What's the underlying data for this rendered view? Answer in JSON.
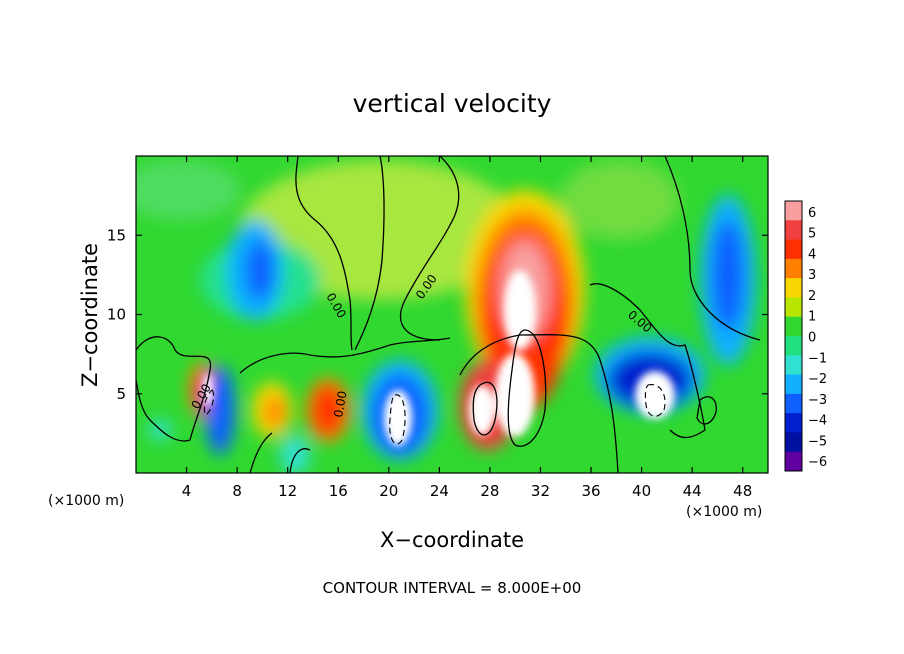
{
  "chart_data": {
    "type": "heatmap",
    "title": "vertical velocity",
    "xlabel": "X−coordinate",
    "ylabel": "Z−coordinate",
    "x_unit": "(×1000 m)",
    "x_unit_right": "(×1000 m)",
    "xlim": [
      0,
      50
    ],
    "ylim": [
      0,
      20
    ],
    "x_ticks": [
      4,
      8,
      12,
      16,
      20,
      24,
      28,
      32,
      36,
      40,
      44,
      48
    ],
    "y_ticks": [
      5,
      10,
      15
    ],
    "colorbar": {
      "ticks": [
        "6",
        "5",
        "4",
        "3",
        "2",
        "1",
        "0",
        "−1",
        "−2",
        "−3",
        "−4",
        "−5",
        "−6"
      ],
      "colors": [
        "#f8a0a0",
        "#f04040",
        "#ff3000",
        "#ff8000",
        "#f8d800",
        "#b8e600",
        "#30d830",
        "#20e080",
        "#30e0d0",
        "#10b0ff",
        "#1060ff",
        "#0020d0",
        "#0010a0",
        "#6000a0"
      ]
    },
    "zero_contour_label": "0.00",
    "features": [
      {
        "sign": "up",
        "x": 30,
        "z": 10,
        "peak": 6
      },
      {
        "sign": "up",
        "x": 28,
        "z": 5,
        "peak": 6
      },
      {
        "sign": "up",
        "x": 15,
        "z": 4.5,
        "peak": 5
      },
      {
        "sign": "up",
        "x": 5.5,
        "z": 5,
        "peak": 4
      },
      {
        "sign": "up",
        "x": 11,
        "z": 4.5,
        "peak": 3
      },
      {
        "sign": "down",
        "x": 41,
        "z": 6,
        "peak": -6
      },
      {
        "sign": "down",
        "x": 21,
        "z": 4.5,
        "peak": -6
      },
      {
        "sign": "down",
        "x": 6,
        "z": 4,
        "peak": -5
      },
      {
        "sign": "down",
        "x": 46,
        "z": 12,
        "peak": -5
      },
      {
        "sign": "down",
        "x": 9.5,
        "z": 13,
        "peak": -3
      },
      {
        "sign": "down",
        "x": 14,
        "z": 2,
        "peak": -2
      }
    ],
    "contour_interval_text": "CONTOUR INTERVAL = 8.000E+00"
  }
}
